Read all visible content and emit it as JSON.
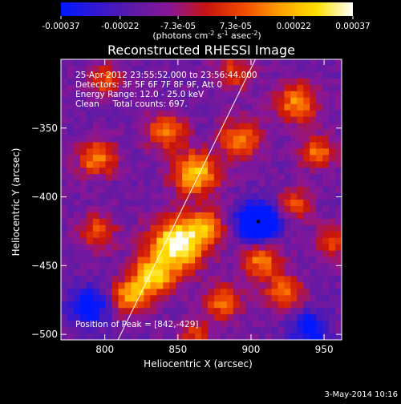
{
  "colorbar": {
    "ticks": [
      "-0.00037",
      "-0.00022",
      "-7.3e-05",
      "7.3e-05",
      "0.00022",
      "0.00037"
    ],
    "tick_values": [
      -0.00037,
      -0.00022,
      -7.3e-05,
      7.3e-05,
      0.00022,
      0.00037
    ],
    "range": [
      -0.00037,
      0.00037
    ],
    "stops": [
      "#0018ff",
      "#3418d0",
      "#5f1aa6",
      "#8a1696",
      "#c8140e",
      "#f04a00",
      "#ffa000",
      "#ffe000",
      "#ffffff"
    ]
  },
  "chart_data": {
    "type": "heatmap",
    "title": "Reconstructed RHESSI Image",
    "unit_label": "(photons cm",
    "unit_exp1": "-2",
    "unit_mid": " s",
    "unit_exp2": "-1",
    "unit_end": " asec",
    "unit_exp3": "-2",
    "unit_close": ")",
    "xlabel": "Heliocentric X (arcsec)",
    "ylabel": "Heliocentric Y (arcsec)",
    "xlim": [
      770,
      962
    ],
    "ylim": [
      -504,
      -300
    ],
    "xticks": [
      800,
      850,
      900,
      950
    ],
    "yticks": [
      -350,
      -400,
      -450,
      -500
    ],
    "xtick_labels": [
      "800",
      "850",
      "900",
      "950"
    ],
    "ytick_labels": [
      "−350",
      "−400",
      "−450",
      "−500"
    ],
    "annotations": [
      "25-Apr-2012 23:55:52.000 to 23:56:44.000",
      "Detectors: 3F 5F 6F 7F 8F 9F, Att 0",
      "Energy Range: 12.0 - 25.0 keV",
      "Clean     Total counts: 697."
    ],
    "peak_label": "Position of Peak = [842,-429]",
    "peak": [
      842,
      -429
    ],
    "limb_line": [
      [
        809,
        -504
      ],
      [
        903,
        -300
      ]
    ],
    "marker": [
      905,
      -418
    ],
    "emission_blobs": [
      {
        "x": 850,
        "y": -434,
        "amp": 1.0,
        "sigma": 13
      },
      {
        "x": 833,
        "y": -457,
        "amp": 0.75,
        "sigma": 10
      },
      {
        "x": 862,
        "y": -383,
        "amp": 0.75,
        "sigma": 11
      },
      {
        "x": 817,
        "y": -473,
        "amp": 0.65,
        "sigma": 9
      },
      {
        "x": 842,
        "y": -352,
        "amp": 0.6,
        "sigma": 9
      },
      {
        "x": 795,
        "y": -372,
        "amp": 0.6,
        "sigma": 9
      },
      {
        "x": 893,
        "y": -358,
        "amp": 0.55,
        "sigma": 10
      },
      {
        "x": 932,
        "y": -332,
        "amp": 0.6,
        "sigma": 10
      },
      {
        "x": 945,
        "y": -368,
        "amp": 0.55,
        "sigma": 8
      },
      {
        "x": 923,
        "y": -470,
        "amp": 0.55,
        "sigma": 9
      },
      {
        "x": 880,
        "y": -477,
        "amp": 0.5,
        "sigma": 9
      },
      {
        "x": 907,
        "y": -447,
        "amp": 0.55,
        "sigma": 9
      },
      {
        "x": 870,
        "y": -422,
        "amp": 0.55,
        "sigma": 8
      },
      {
        "x": 795,
        "y": -425,
        "amp": 0.45,
        "sigma": 9
      },
      {
        "x": 955,
        "y": -433,
        "amp": 0.45,
        "sigma": 8
      },
      {
        "x": 800,
        "y": -315,
        "amp": 0.45,
        "sigma": 8
      },
      {
        "x": 930,
        "y": -405,
        "amp": 0.45,
        "sigma": 8
      },
      {
        "x": 888,
        "y": -310,
        "amp": 0.4,
        "sigma": 9
      },
      {
        "x": 862,
        "y": -500,
        "amp": 0.35,
        "sigma": 8
      }
    ],
    "negative_blobs": [
      {
        "x": 905,
        "y": -418,
        "amp": -1.1,
        "sigma": 9
      },
      {
        "x": 790,
        "y": -480,
        "amp": -0.5,
        "sigma": 10
      },
      {
        "x": 940,
        "y": -496,
        "amp": -0.5,
        "sigma": 9
      }
    ]
  },
  "footer_date": "3-May-2014 10:16"
}
